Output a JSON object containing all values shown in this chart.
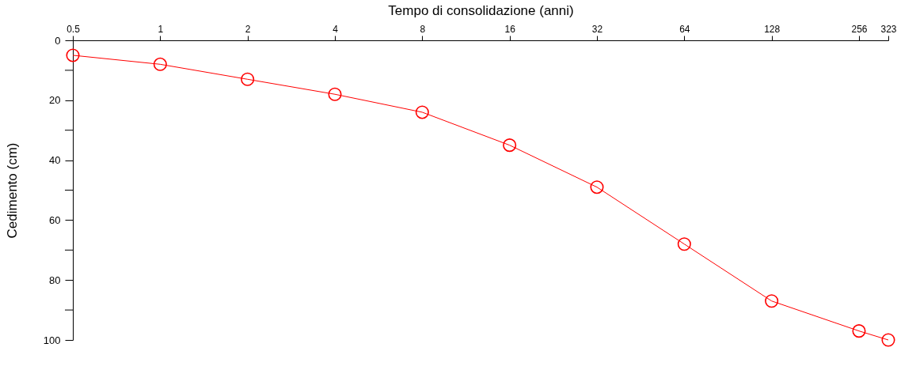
{
  "chart_data": {
    "type": "line",
    "xlabel": "Tempo di consolidazione (anni)",
    "ylabel": "Cedimento (cm)",
    "x": [
      0.5,
      1,
      2,
      4,
      8,
      16,
      32,
      64,
      128,
      256,
      323
    ],
    "series": [
      {
        "color": "#ff0000",
        "values": [
          5,
          8,
          13,
          18,
          24,
          35,
          49,
          68,
          87,
          97,
          100
        ]
      }
    ],
    "log": "x",
    "xlim": [
      0.5,
      323
    ],
    "xticks": [
      0.5,
      1,
      2,
      4,
      8,
      16,
      32,
      64,
      128,
      256,
      323
    ],
    "ylim": [
      100,
      0
    ],
    "yticks": [
      0,
      {
        "value": 10,
        "label": null
      },
      20,
      {
        "value": 30,
        "label": null
      },
      40,
      {
        "value": 50,
        "label": null
      },
      60,
      {
        "value": 70,
        "label": null
      },
      80,
      {
        "value": 90,
        "label": null
      },
      100
    ],
    "grid": false,
    "legend": false,
    "marker": "circle",
    "line_style": "solid"
  }
}
